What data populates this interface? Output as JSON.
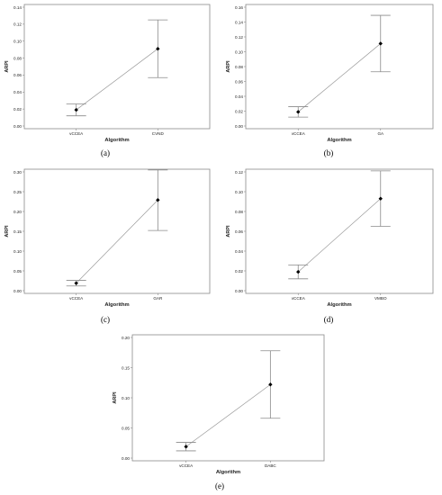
{
  "chart_data": [
    {
      "type": "interval",
      "panel_label": "(a)",
      "xlabel": "Algorithm",
      "ylabel": "ARPI",
      "categories": [
        "vCCEA",
        "CVND"
      ],
      "means": [
        0.019,
        0.091
      ],
      "lower": [
        0.012,
        0.057
      ],
      "upper": [
        0.026,
        0.125
      ],
      "ylim": [
        0,
        0.14
      ],
      "yticks": [
        "0.00",
        "0.02",
        "0.04",
        "0.06",
        "0.08",
        "0.10",
        "0.12",
        "0.14"
      ],
      "ytick_values": [
        0,
        0.02,
        0.04,
        0.06,
        0.08,
        0.1,
        0.12,
        0.14
      ],
      "grid": false
    },
    {
      "type": "interval",
      "panel_label": "(b)",
      "xlabel": "Algorithm",
      "ylabel": "ARPI",
      "categories": [
        "vCCEA",
        "GA"
      ],
      "means": [
        0.019,
        0.111
      ],
      "lower": [
        0.012,
        0.073
      ],
      "upper": [
        0.026,
        0.149
      ],
      "ylim": [
        0,
        0.16
      ],
      "yticks": [
        "0.00",
        "0.02",
        "0.04",
        "0.06",
        "0.08",
        "0.10",
        "0.12",
        "0.14",
        "0.16"
      ],
      "ytick_values": [
        0,
        0.02,
        0.04,
        0.06,
        0.08,
        0.1,
        0.12,
        0.14,
        0.16
      ],
      "grid": false
    },
    {
      "type": "interval",
      "panel_label": "(c)",
      "xlabel": "Algorithm",
      "ylabel": "ARPI",
      "categories": [
        "vCCEA",
        "GAR"
      ],
      "means": [
        0.019,
        0.229
      ],
      "lower": [
        0.012,
        0.152
      ],
      "upper": [
        0.026,
        0.305
      ],
      "ylim": [
        0,
        0.3
      ],
      "yticks": [
        "0.00",
        "0.05",
        "0.10",
        "0.15",
        "0.20",
        "0.25",
        "0.30"
      ],
      "ytick_values": [
        0,
        0.05,
        0.1,
        0.15,
        0.2,
        0.25,
        0.3
      ],
      "grid": false
    },
    {
      "type": "interval",
      "panel_label": "(d)",
      "xlabel": "Algorithm",
      "ylabel": "ARPI",
      "categories": [
        "vCCEA",
        "VMBO"
      ],
      "means": [
        0.019,
        0.093
      ],
      "lower": [
        0.012,
        0.065
      ],
      "upper": [
        0.026,
        0.121
      ],
      "ylim": [
        0,
        0.12
      ],
      "yticks": [
        "0.00",
        "0.02",
        "0.04",
        "0.06",
        "0.08",
        "0.10",
        "0.12"
      ],
      "ytick_values": [
        0,
        0.02,
        0.04,
        0.06,
        0.08,
        0.1,
        0.12
      ],
      "grid": false
    },
    {
      "type": "interval",
      "panel_label": "(e)",
      "xlabel": "Algorithm",
      "ylabel": "ARPI",
      "categories": [
        "vCCEA",
        "DABC"
      ],
      "means": [
        0.019,
        0.122
      ],
      "lower": [
        0.012,
        0.066
      ],
      "upper": [
        0.026,
        0.178
      ],
      "ylim": [
        0,
        0.2
      ],
      "yticks": [
        "0.00",
        "0.05",
        "0.10",
        "0.15",
        "0.20"
      ],
      "ytick_values": [
        0,
        0.05,
        0.1,
        0.15,
        0.2
      ],
      "grid": false
    }
  ],
  "colors": {
    "frame": "#8a8a8a",
    "interval": "#8a8a8a",
    "connector": "#9a9a9a",
    "mean": "#000000",
    "text": "#222222"
  }
}
